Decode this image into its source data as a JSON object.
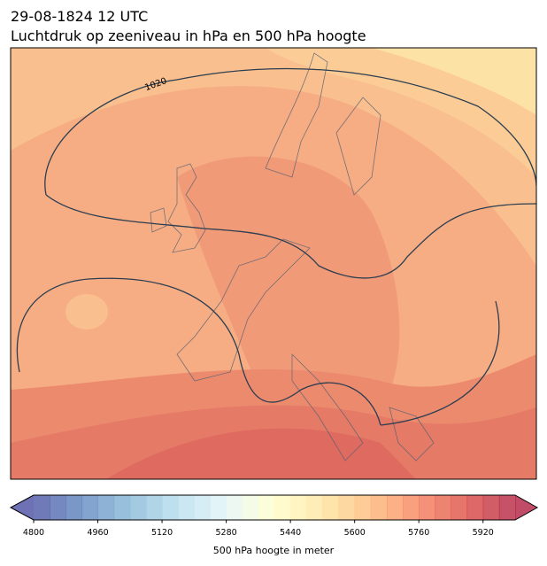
{
  "header": {
    "date": "29-08-1824 12 UTC",
    "title": "Luchtdruk op zeeniveau in hPa en 500 hPa hoogte"
  },
  "map": {
    "contour_labels": [
      "1020"
    ]
  },
  "colorbar": {
    "label": "500 hPa hoogte in meter",
    "range": [
      4800,
      6000
    ],
    "step": 40,
    "ticks": [
      4800,
      4960,
      5120,
      5280,
      5440,
      5600,
      5760,
      5920
    ],
    "colormap": [
      "#313695",
      "#4575b4",
      "#74add1",
      "#abd9e9",
      "#e0f3f8",
      "#ffffbf",
      "#fee090",
      "#fdae61",
      "#f46d43",
      "#d73027",
      "#a50026"
    ],
    "opacity": 0.7
  }
}
